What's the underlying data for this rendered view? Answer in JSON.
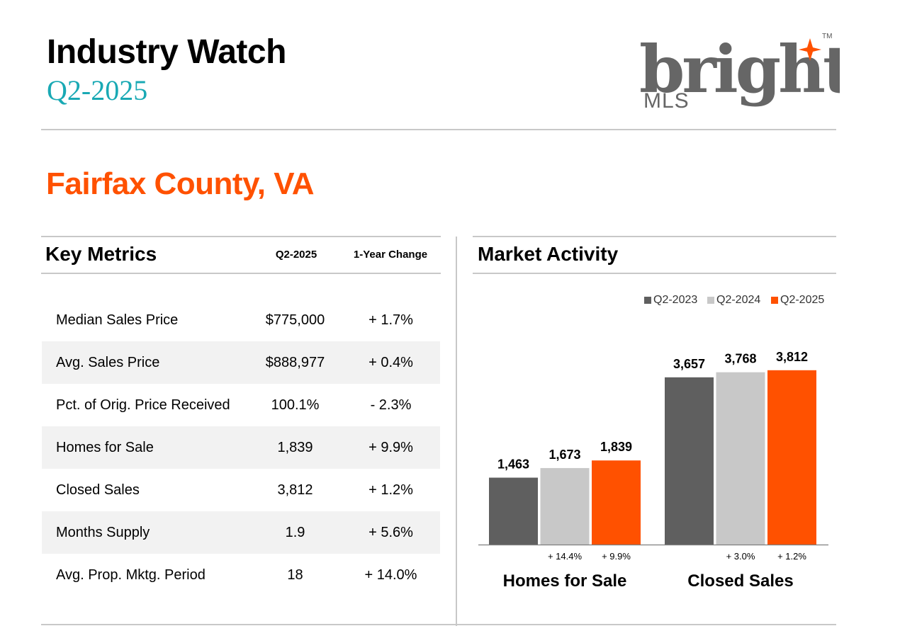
{
  "header": {
    "title": "Industry Watch",
    "subtitle": "Q2-2025",
    "logo": {
      "word": "bright",
      "sub": "MLS",
      "tm": "TM"
    }
  },
  "region": "Fairfax County, VA",
  "colors": {
    "teal": "#19a9b4",
    "orange": "#ff5100",
    "dark_gray": "#5f5f5f",
    "light_gray": "#c8c8c8"
  },
  "key_metrics": {
    "title": "Key Metrics",
    "col_period": "Q2-2025",
    "col_change": "1-Year Change",
    "rows": [
      {
        "label": "Median Sales Price",
        "value": "$775,000",
        "change": "+ 1.7%"
      },
      {
        "label": "Avg. Sales Price",
        "value": "$888,977",
        "change": "+ 0.4%"
      },
      {
        "label": "Pct. of Orig. Price Received",
        "value": "100.1%",
        "change": "- 2.3%"
      },
      {
        "label": "Homes for Sale",
        "value": "1,839",
        "change": "+ 9.9%"
      },
      {
        "label": "Closed Sales",
        "value": "3,812",
        "change": "+ 1.2%"
      },
      {
        "label": "Months Supply",
        "value": "1.9",
        "change": "+ 5.6%"
      },
      {
        "label": "Avg. Prop. Mktg. Period",
        "value": "18",
        "change": "+ 14.0%"
      }
    ]
  },
  "market_activity": {
    "title": "Market Activity"
  },
  "chart_data": {
    "type": "bar",
    "categories": [
      "Homes for Sale",
      "Closed Sales"
    ],
    "series": [
      {
        "name": "Q2-2023",
        "color": "#5f5f5f",
        "values": [
          1463,
          3657
        ],
        "labels": [
          "1,463",
          "3,657"
        ],
        "changes": [
          "",
          ""
        ]
      },
      {
        "name": "Q2-2024",
        "color": "#c8c8c8",
        "values": [
          1673,
          3768
        ],
        "labels": [
          "1,673",
          "3,768"
        ],
        "changes": [
          "+ 14.4%",
          "+ 3.0%"
        ]
      },
      {
        "name": "Q2-2025",
        "color": "#ff5100",
        "values": [
          1839,
          3812
        ],
        "labels": [
          "1,839",
          "3,812"
        ],
        "changes": [
          "+ 9.9%",
          "+ 1.2%"
        ]
      }
    ],
    "legend": "top-right",
    "grid": false,
    "ylim": [
      0,
      4800
    ]
  }
}
